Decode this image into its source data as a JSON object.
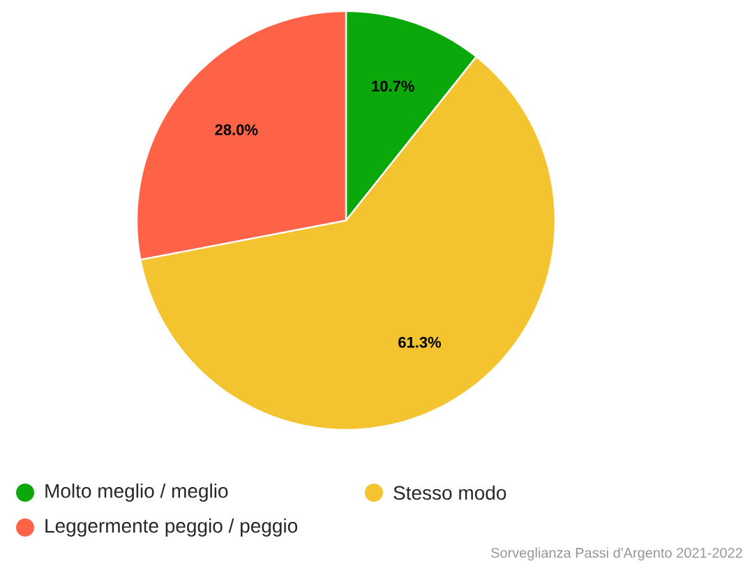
{
  "chart_data": {
    "type": "pie",
    "categories": [
      "Molto meglio / meglio",
      "Stesso modo",
      "Leggermente peggio / peggio"
    ],
    "values": [
      10.7,
      61.3,
      28.0
    ],
    "value_labels": [
      "10.7%",
      "61.3%",
      "28.0%"
    ],
    "colors": [
      "#0aa80a",
      "#f4c430",
      "#ff6347"
    ],
    "legend": "bottom",
    "annotations": [
      "Sorveglianza Passi d'Argento 2021-2022"
    ]
  }
}
